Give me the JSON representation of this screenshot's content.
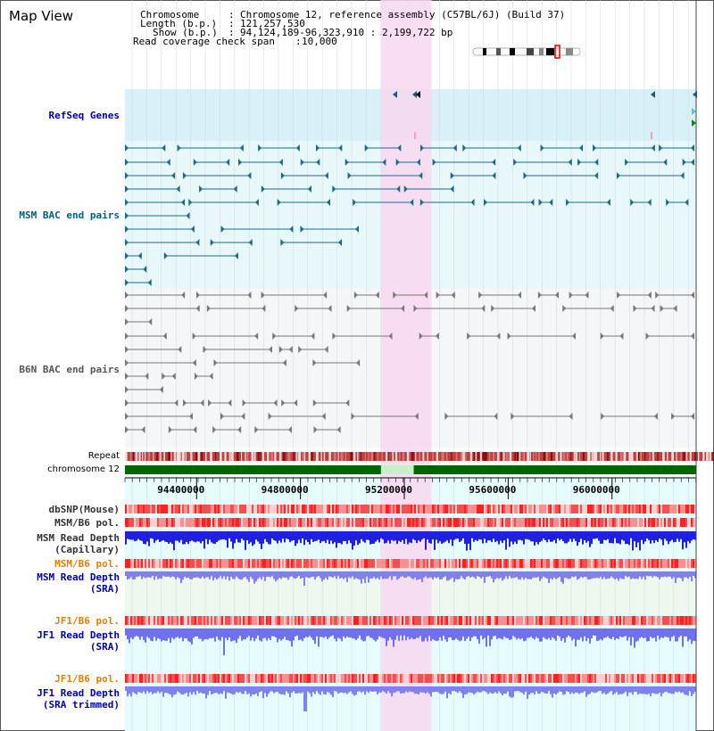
{
  "view_title": "Map View",
  "header": {
    "chromosome_label": "Chromosome",
    "chromosome_value": "Chromosome 12, reference assembly (C57BL/6J) (Build 37)",
    "length_label": "Length (b.p.)",
    "length_value": "121,257,530",
    "show_label": "Show (b.p.)",
    "show_value": "94,124,189-96,323,910 : 2,199,722 bp",
    "coverage_label": "Read coverage check span",
    "coverage_value": "10,000"
  },
  "tracks": {
    "refseq": "RefSeq Genes",
    "msm_bac": "MSM BAC end pairs",
    "b6n_bac": "B6N BAC end pairs",
    "repeat": "Repeat",
    "chromosome": "chromosome 12",
    "dbsnp": "dbSNP(Mouse)",
    "msm_b6_pol": "MSM/B6 pol.",
    "msm_depth_cap_1": "MSM Read Depth",
    "msm_depth_cap_2": "(Capillary)",
    "msm_b6_pol_sra": "MSM/B6 pol.",
    "msm_depth_sra_1": "MSM Read Depth",
    "msm_depth_sra_2": "(SRA)",
    "jf1_b6_pol_1": "JF1/B6 pol.",
    "jf1_depth_sra_1": "JF1 Read Depth",
    "jf1_depth_sra_2": "(SRA)",
    "jf1_b6_pol_2": "JF1/B6 pol.",
    "jf1_depth_trim_1": "JF1 Read Depth",
    "jf1_depth_trim_2": "(SRA trimmed)"
  },
  "axis": {
    "start": 94124189,
    "end": 96323910,
    "ticks": [
      94400000,
      94800000,
      95200000,
      95600000,
      96000000
    ],
    "tick_labels": [
      "94400000",
      "94800000",
      "95200000",
      "95600000",
      "96000000"
    ]
  },
  "highlight": {
    "start": 95110000,
    "end": 95305000
  },
  "colors": {
    "track_label_blue": "#0000aa",
    "msm_label_teal": "#006080",
    "b6n_label_gray": "#555555",
    "pol_label_orange": "#e08000",
    "highlight_pink": "#f8d8f0",
    "refseq_bg": "#d8f0f8",
    "msm_bg": "#e8f8fa",
    "chromosome_green": "#006600",
    "depth_blue": "#2020e0",
    "depth_light": "#8080f0"
  }
}
